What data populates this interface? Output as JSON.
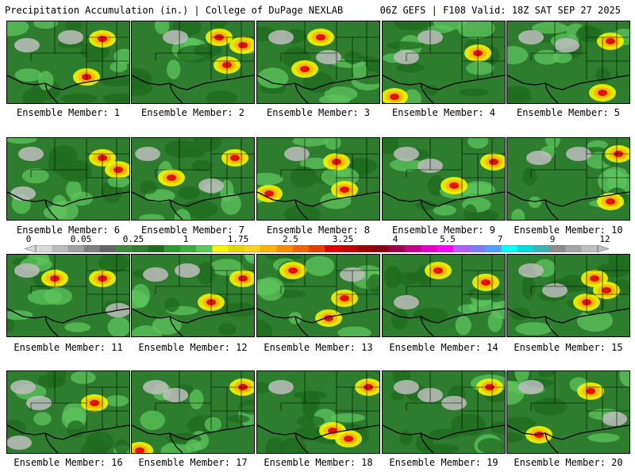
{
  "header": {
    "title": "Precipitation Accumulation (in.) | College of DuPage NEXLAB",
    "run_info": "06Z GEFS | F108 Valid: 18Z SAT SEP 27 2025"
  },
  "caption_prefix": "Ensemble Member:",
  "members": [
    {
      "label": "Ensemble Member: 1",
      "heavy": [
        [
          120,
          22
        ],
        [
          100,
          70
        ]
      ],
      "dry": [
        [
          25,
          30
        ],
        [
          80,
          20
        ]
      ]
    },
    {
      "label": "Ensemble Member: 2",
      "heavy": [
        [
          110,
          20
        ],
        [
          140,
          30
        ],
        [
          120,
          55
        ]
      ],
      "dry": [
        [
          55,
          20
        ]
      ]
    },
    {
      "label": "Ensemble Member: 3",
      "heavy": [
        [
          80,
          20
        ],
        [
          60,
          60
        ]
      ],
      "dry": [
        [
          30,
          20
        ],
        [
          90,
          45
        ]
      ]
    },
    {
      "label": "Ensemble Member: 4",
      "heavy": [
        [
          15,
          95
        ],
        [
          120,
          40
        ]
      ],
      "dry": [
        [
          60,
          20
        ],
        [
          30,
          45
        ]
      ]
    },
    {
      "label": "Ensemble Member: 5",
      "heavy": [
        [
          130,
          25
        ],
        [
          120,
          90
        ]
      ],
      "dry": [
        [
          30,
          20
        ],
        [
          75,
          30
        ]
      ]
    },
    {
      "label": "Ensemble Member: 6",
      "heavy": [
        [
          120,
          25
        ],
        [
          140,
          40
        ]
      ],
      "dry": [
        [
          30,
          20
        ],
        [
          20,
          70
        ]
      ]
    },
    {
      "label": "Ensemble Member: 7",
      "heavy": [
        [
          50,
          50
        ],
        [
          130,
          25
        ]
      ],
      "dry": [
        [
          20,
          20
        ],
        [
          100,
          60
        ]
      ]
    },
    {
      "label": "Ensemble Member: 8",
      "heavy": [
        [
          100,
          30
        ],
        [
          15,
          70
        ],
        [
          110,
          65
        ]
      ],
      "dry": [
        [
          50,
          20
        ]
      ]
    },
    {
      "label": "Ensemble Member: 9",
      "heavy": [
        [
          90,
          60
        ],
        [
          140,
          30
        ]
      ],
      "dry": [
        [
          30,
          20
        ],
        [
          60,
          35
        ]
      ]
    },
    {
      "label": "Ensemble Member: 10",
      "heavy": [
        [
          130,
          80
        ],
        [
          140,
          20
        ]
      ],
      "dry": [
        [
          40,
          25
        ],
        [
          90,
          20
        ]
      ]
    },
    {
      "label": "Ensemble Member: 11",
      "heavy": [
        [
          120,
          30
        ],
        [
          60,
          30
        ]
      ],
      "dry": [
        [
          25,
          20
        ],
        [
          140,
          70
        ]
      ]
    },
    {
      "label": "Ensemble Member: 12",
      "heavy": [
        [
          100,
          60
        ],
        [
          140,
          30
        ]
      ],
      "dry": [
        [
          30,
          25
        ],
        [
          70,
          20
        ]
      ]
    },
    {
      "label": "Ensemble Member: 13",
      "heavy": [
        [
          45,
          20
        ],
        [
          90,
          80
        ],
        [
          110,
          55
        ]
      ],
      "dry": [
        [
          120,
          25
        ]
      ]
    },
    {
      "label": "Ensemble Member: 14",
      "heavy": [
        [
          70,
          20
        ],
        [
          130,
          35
        ]
      ],
      "dry": [
        [
          30,
          60
        ]
      ]
    },
    {
      "label": "Ensemble Member: 15",
      "heavy": [
        [
          110,
          30
        ],
        [
          125,
          45
        ],
        [
          100,
          60
        ]
      ],
      "dry": [
        [
          30,
          20
        ],
        [
          60,
          45
        ]
      ]
    },
    {
      "label": "Ensemble Member: 16",
      "heavy": [
        [
          110,
          40
        ]
      ],
      "dry": [
        [
          20,
          20
        ],
        [
          40,
          40
        ],
        [
          15,
          90
        ]
      ]
    },
    {
      "label": "Ensemble Member: 17",
      "heavy": [
        [
          10,
          100
        ],
        [
          140,
          20
        ]
      ],
      "dry": [
        [
          30,
          20
        ],
        [
          55,
          30
        ]
      ]
    },
    {
      "label": "Ensemble Member: 18",
      "heavy": [
        [
          140,
          20
        ],
        [
          95,
          75
        ],
        [
          115,
          85
        ]
      ],
      "dry": [
        [
          30,
          20
        ]
      ]
    },
    {
      "label": "Ensemble Member: 19",
      "heavy": [
        [
          135,
          20
        ]
      ],
      "dry": [
        [
          30,
          20
        ],
        [
          60,
          30
        ],
        [
          90,
          40
        ]
      ]
    },
    {
      "label": "Ensemble Member: 20",
      "heavy": [
        [
          105,
          25
        ],
        [
          40,
          80
        ]
      ],
      "dry": [
        [
          30,
          20
        ],
        [
          135,
          60
        ]
      ]
    }
  ],
  "colorbar": {
    "colors": [
      "#d9d9d9",
      "#bdbdbd",
      "#a0a0a0",
      "#7f7f7f",
      "#666666",
      "#3d8c3d",
      "#2e7d2e",
      "#1f6b1f",
      "#2c9b2c",
      "#3aaf3a",
      "#5ec45e",
      "#f5f500",
      "#e1d800",
      "#ffd21e",
      "#ffb400",
      "#ff8c00",
      "#f56400",
      "#e83c00",
      "#e00000",
      "#c80000",
      "#a00000",
      "#8c0014",
      "#a0004b",
      "#c8008c",
      "#e600c8",
      "#ff00ff",
      "#b45aff",
      "#8278ff",
      "#50a0ff",
      "#00ffff",
      "#00dcdc",
      "#3cb4b4",
      "#8c8c8c",
      "#a5a5a5",
      "#bebebe"
    ],
    "labels": [
      "0",
      "0.05",
      "0.25",
      "1",
      "1.75",
      "2.5",
      "3.25",
      "4",
      "5.5",
      "7",
      "9",
      "12"
    ]
  }
}
